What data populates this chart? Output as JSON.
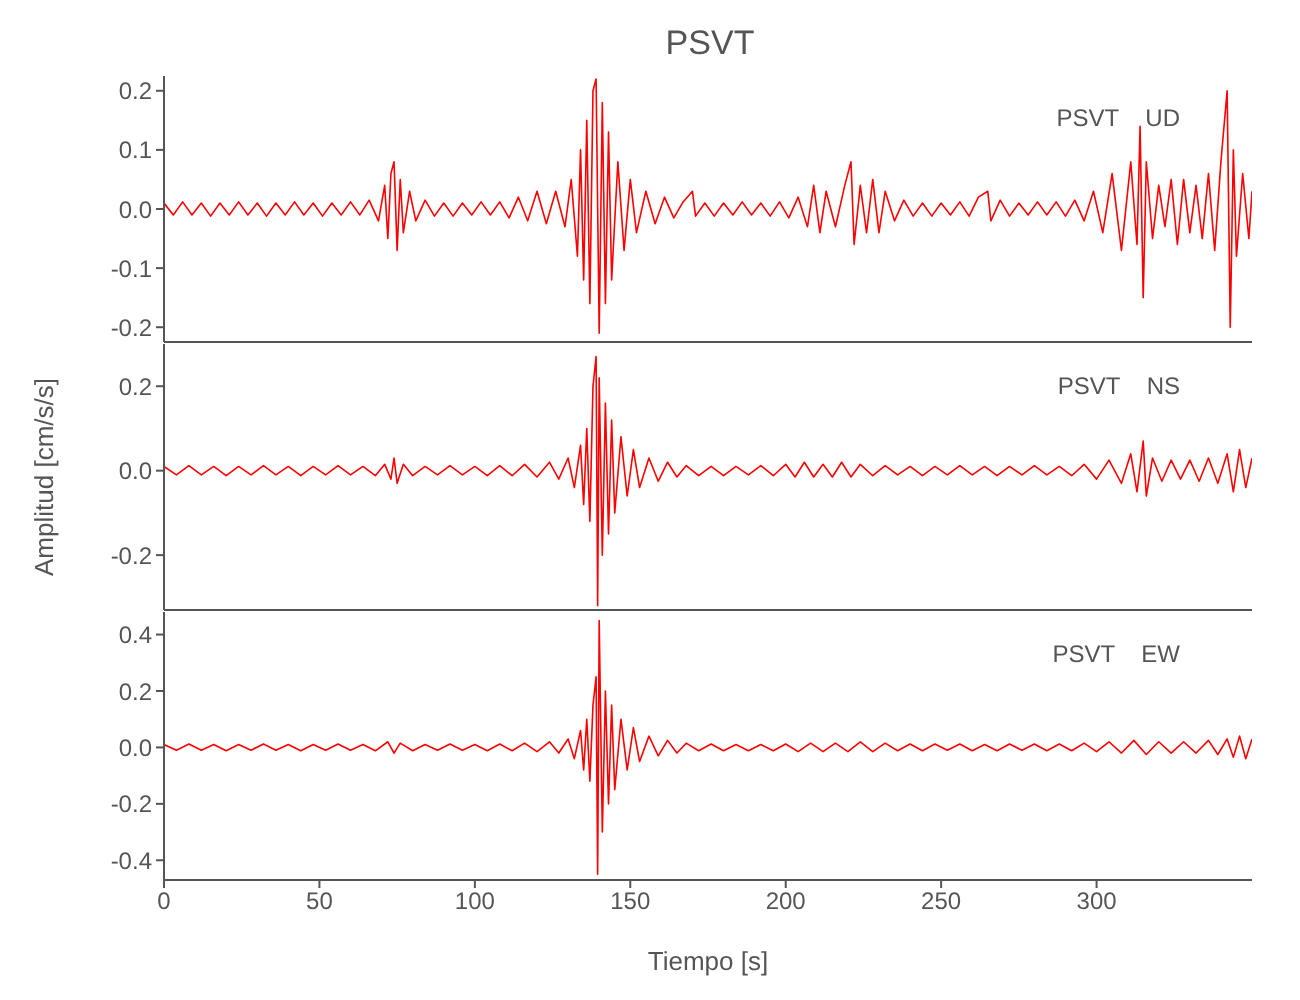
{
  "chart_data": [
    {
      "type": "line",
      "title": "PSVT",
      "annotations": [
        "PSVT UD"
      ],
      "tick_labels": "y",
      "grid": false,
      "legend": false,
      "marker": "none",
      "xlim": [
        0,
        350
      ],
      "xticks": [
        0,
        50,
        100,
        150,
        200,
        250,
        300
      ],
      "ylim": [
        -0.225,
        0.225
      ],
      "yticks": [
        {
          "value": -0.2,
          "label": "-0.2"
        },
        {
          "value": -0.1,
          "label": "-0.1"
        },
        {
          "value": 0,
          "label": "0.0"
        },
        {
          "value": 0.1,
          "label": "0.1"
        },
        {
          "value": 0.2,
          "label": "0.2"
        }
      ],
      "x": [
        0,
        3,
        6,
        9,
        12,
        15,
        18,
        21,
        24,
        27,
        30,
        33,
        36,
        39,
        42,
        45,
        48,
        51,
        54,
        57,
        60,
        63,
        66,
        69,
        71,
        72,
        73,
        74,
        75,
        76,
        77,
        79,
        81,
        84,
        87,
        90,
        93,
        96,
        99,
        102,
        105,
        108,
        111,
        114,
        117,
        120,
        123,
        126,
        129,
        131,
        133,
        134,
        135,
        136,
        137,
        138,
        139,
        140,
        141,
        142,
        143,
        144,
        146,
        148,
        150,
        152,
        155,
        158,
        161,
        164,
        167,
        170,
        171,
        174,
        177,
        180,
        183,
        186,
        189,
        192,
        195,
        198,
        201,
        204,
        207,
        209,
        211,
        213,
        216,
        219,
        221,
        222,
        224,
        226,
        228,
        230,
        232,
        235,
        238,
        241,
        244,
        247,
        250,
        253,
        256,
        259,
        262,
        265,
        266,
        269,
        272,
        275,
        278,
        281,
        284,
        287,
        290,
        293,
        296,
        299,
        302,
        305,
        308,
        311,
        313,
        314,
        315,
        316,
        318,
        320,
        322,
        324,
        326,
        328,
        330,
        332,
        334,
        336,
        338,
        340,
        342,
        343,
        344,
        345,
        347,
        349,
        350
      ],
      "series": [
        {
          "color": "#ff0000",
          "values": [
            0.01,
            -0.01,
            0.012,
            -0.01,
            0.01,
            -0.012,
            0.01,
            -0.01,
            0.012,
            -0.01,
            0.01,
            -0.012,
            0.01,
            -0.01,
            0.012,
            -0.01,
            0.01,
            -0.012,
            0.01,
            -0.01,
            0.012,
            -0.01,
            0.015,
            -0.02,
            0.04,
            -0.05,
            0.06,
            0.08,
            -0.07,
            0.05,
            -0.04,
            0.03,
            -0.02,
            0.015,
            -0.012,
            0.01,
            -0.012,
            0.01,
            -0.01,
            0.012,
            -0.01,
            0.012,
            -0.015,
            0.02,
            -0.02,
            0.03,
            -0.025,
            0.03,
            -0.03,
            0.05,
            -0.08,
            0.1,
            -0.12,
            0.15,
            -0.16,
            0.2,
            0.22,
            -0.21,
            0.18,
            -0.16,
            0.13,
            -0.12,
            0.08,
            -0.07,
            0.05,
            -0.04,
            0.03,
            -0.025,
            0.02,
            -0.015,
            0.012,
            0.03,
            -0.012,
            0.01,
            -0.012,
            0.01,
            -0.01,
            0.012,
            -0.01,
            0.01,
            -0.012,
            0.012,
            -0.015,
            0.02,
            -0.03,
            0.04,
            -0.04,
            0.03,
            -0.03,
            0.04,
            0.08,
            -0.06,
            0.04,
            -0.04,
            0.05,
            -0.04,
            0.03,
            -0.02,
            0.015,
            -0.012,
            0.01,
            -0.012,
            0.01,
            -0.01,
            0.012,
            -0.012,
            0.02,
            0.03,
            -0.02,
            0.015,
            -0.012,
            0.01,
            -0.01,
            0.012,
            -0.01,
            0.012,
            -0.012,
            0.015,
            -0.02,
            0.03,
            -0.04,
            0.06,
            -0.07,
            0.08,
            -0.06,
            0.14,
            -0.15,
            0.08,
            -0.05,
            0.04,
            -0.03,
            0.05,
            -0.06,
            0.05,
            -0.04,
            0.04,
            -0.05,
            0.06,
            -0.07,
            0.08,
            0.2,
            -0.2,
            0.1,
            -0.08,
            0.06,
            -0.05,
            0.03
          ]
        }
      ]
    },
    {
      "type": "line",
      "ylabel": "Amplitud [cm/s/s]",
      "annotations": [
        "PSVT NS"
      ],
      "tick_labels": "y",
      "grid": false,
      "legend": false,
      "marker": "none",
      "xlim": [
        0,
        350
      ],
      "xticks": [
        0,
        50,
        100,
        150,
        200,
        250,
        300
      ],
      "ylim": [
        -0.33,
        0.3
      ],
      "yticks": [
        {
          "value": -0.2,
          "label": "-0.2"
        },
        {
          "value": 0,
          "label": "0.0"
        },
        {
          "value": 0.2,
          "label": "0.2"
        }
      ],
      "x": [
        0,
        4,
        8,
        12,
        16,
        20,
        24,
        28,
        32,
        36,
        40,
        44,
        48,
        52,
        56,
        60,
        64,
        68,
        71,
        73,
        74,
        75,
        77,
        80,
        84,
        88,
        92,
        96,
        100,
        104,
        108,
        112,
        116,
        120,
        124,
        127,
        130,
        132,
        134,
        135,
        136,
        137,
        138,
        139,
        139.5,
        140,
        141,
        142,
        143,
        144,
        145,
        147,
        149,
        151,
        153,
        156,
        159,
        162,
        165,
        168,
        172,
        176,
        180,
        184,
        188,
        192,
        196,
        200,
        203,
        206,
        209,
        212,
        215,
        218,
        221,
        224,
        228,
        232,
        236,
        240,
        244,
        248,
        252,
        256,
        260,
        264,
        268,
        272,
        276,
        280,
        284,
        288,
        292,
        296,
        300,
        304,
        308,
        311,
        313,
        315,
        316,
        318,
        321,
        324,
        327,
        330,
        333,
        336,
        339,
        342,
        344,
        346,
        348,
        350
      ],
      "series": [
        {
          "color": "#ff0000",
          "values": [
            0.01,
            -0.01,
            0.012,
            -0.01,
            0.01,
            -0.012,
            0.01,
            -0.01,
            0.012,
            -0.01,
            0.01,
            -0.012,
            0.01,
            -0.01,
            0.012,
            -0.01,
            0.01,
            -0.012,
            0.015,
            -0.02,
            0.03,
            -0.03,
            0.015,
            -0.012,
            0.01,
            -0.01,
            0.012,
            -0.01,
            0.01,
            -0.012,
            0.012,
            -0.012,
            0.015,
            -0.015,
            0.02,
            -0.02,
            0.03,
            -0.04,
            0.06,
            -0.08,
            0.1,
            -0.12,
            0.2,
            0.27,
            -0.32,
            0.22,
            -0.2,
            0.16,
            -0.15,
            0.12,
            -0.1,
            0.08,
            -0.06,
            0.05,
            -0.04,
            0.03,
            -0.025,
            0.02,
            -0.015,
            0.012,
            -0.012,
            0.01,
            -0.012,
            0.01,
            -0.01,
            0.012,
            -0.012,
            0.015,
            -0.015,
            0.02,
            -0.015,
            0.015,
            -0.015,
            0.02,
            -0.015,
            0.015,
            -0.012,
            0.012,
            -0.01,
            0.01,
            -0.012,
            0.01,
            -0.01,
            0.012,
            -0.01,
            0.01,
            -0.012,
            0.01,
            -0.01,
            0.012,
            -0.01,
            0.01,
            -0.012,
            0.015,
            -0.02,
            0.025,
            -0.03,
            0.04,
            -0.05,
            0.07,
            -0.06,
            0.03,
            -0.025,
            0.025,
            -0.02,
            0.025,
            -0.025,
            0.03,
            -0.03,
            0.04,
            -0.05,
            0.05,
            -0.04,
            0.03
          ]
        }
      ]
    },
    {
      "type": "line",
      "xlabel": "Tiempo [s]",
      "annotations": [
        "PSVT EW"
      ],
      "grid": false,
      "legend": false,
      "marker": "none",
      "xlim": [
        0,
        350
      ],
      "xticks": [
        0,
        50,
        100,
        150,
        200,
        250,
        300
      ],
      "ylim": [
        -0.47,
        0.48
      ],
      "yticks": [
        {
          "value": -0.4,
          "label": "-0.4"
        },
        {
          "value": -0.2,
          "label": "-0.2"
        },
        {
          "value": 0,
          "label": "0.0"
        },
        {
          "value": 0.2,
          "label": "0.2"
        },
        {
          "value": 0.4,
          "label": "0.4"
        }
      ],
      "x": [
        0,
        4,
        8,
        12,
        16,
        20,
        24,
        28,
        32,
        36,
        40,
        44,
        48,
        52,
        56,
        60,
        64,
        68,
        72,
        74,
        76,
        80,
        84,
        88,
        92,
        96,
        100,
        104,
        108,
        112,
        116,
        120,
        124,
        127,
        130,
        132,
        134,
        135,
        136,
        137,
        138,
        139,
        139.5,
        140,
        141,
        142,
        143,
        144,
        145,
        147,
        149,
        151,
        153,
        156,
        159,
        162,
        165,
        168,
        172,
        176,
        180,
        184,
        188,
        192,
        196,
        200,
        204,
        208,
        212,
        216,
        220,
        224,
        228,
        232,
        236,
        240,
        244,
        248,
        252,
        256,
        260,
        264,
        268,
        272,
        276,
        280,
        284,
        288,
        292,
        296,
        300,
        304,
        308,
        312,
        316,
        320,
        324,
        328,
        332,
        336,
        339,
        342,
        344,
        346,
        348,
        350
      ],
      "series": [
        {
          "color": "#ff0000",
          "values": [
            0.01,
            -0.01,
            0.012,
            -0.01,
            0.01,
            -0.012,
            0.01,
            -0.01,
            0.012,
            -0.01,
            0.01,
            -0.012,
            0.01,
            -0.01,
            0.012,
            -0.01,
            0.01,
            -0.012,
            0.02,
            -0.02,
            0.015,
            -0.012,
            0.01,
            -0.01,
            0.012,
            -0.01,
            0.01,
            -0.012,
            0.012,
            -0.012,
            0.015,
            -0.015,
            0.02,
            -0.02,
            0.03,
            -0.04,
            0.06,
            -0.08,
            0.1,
            -0.12,
            0.15,
            0.25,
            -0.45,
            0.45,
            -0.3,
            0.2,
            -0.2,
            0.15,
            -0.15,
            0.1,
            -0.08,
            0.07,
            -0.05,
            0.04,
            -0.03,
            0.025,
            -0.02,
            0.015,
            -0.012,
            0.012,
            -0.012,
            0.01,
            -0.012,
            0.01,
            -0.012,
            0.012,
            -0.015,
            0.015,
            -0.015,
            0.015,
            -0.015,
            0.02,
            -0.015,
            0.015,
            -0.012,
            0.012,
            -0.012,
            0.012,
            -0.01,
            0.012,
            -0.012,
            0.01,
            -0.012,
            0.012,
            -0.01,
            0.012,
            -0.012,
            0.012,
            -0.012,
            0.015,
            -0.015,
            0.02,
            -0.02,
            0.025,
            -0.025,
            0.02,
            -0.02,
            0.02,
            -0.02,
            0.025,
            -0.025,
            0.03,
            -0.035,
            0.04,
            -0.04,
            0.03
          ]
        }
      ]
    }
  ]
}
